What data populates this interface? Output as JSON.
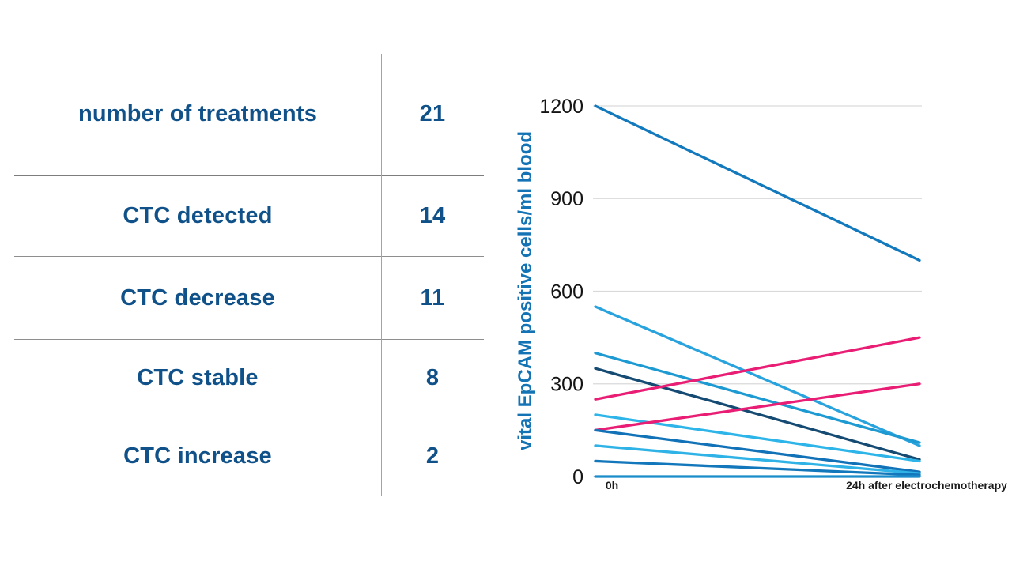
{
  "colors": {
    "table_text": "#0f5188",
    "axis_title": "#1373b4",
    "gridline": "#d9d9d9",
    "magenta_increase": "#e91d74",
    "blue_decrease": "#1379bd"
  },
  "table": {
    "rows": [
      {
        "label": "number of treatments",
        "value": "21"
      },
      {
        "label": "CTC detected",
        "value": "14"
      },
      {
        "label": "CTC decrease",
        "value": "11"
      },
      {
        "label": "CTC stable",
        "value": "8"
      },
      {
        "label": "CTC increase",
        "value": "2"
      }
    ]
  },
  "chart_data": {
    "type": "line",
    "title": "",
    "ylabel": "vital EpCAM positive cells/ml blood",
    "xlabel": "",
    "x_categories": [
      "0h",
      "24h after electrochemotherapy"
    ],
    "ylim": [
      0,
      1200
    ],
    "yticks": [
      0,
      300,
      600,
      900,
      1200
    ],
    "grid": true,
    "legend_position": "none",
    "series": [
      {
        "color": "#1379bd",
        "values": [
          1200,
          700
        ]
      },
      {
        "color": "#29a3dd",
        "values": [
          550,
          100
        ]
      },
      {
        "color": "#1e9ad2",
        "values": [
          400,
          110
        ]
      },
      {
        "color": "#154a72",
        "values": [
          350,
          55
        ]
      },
      {
        "color": "#e91d74",
        "values": [
          250,
          450
        ]
      },
      {
        "color": "#2db4e8",
        "values": [
          200,
          50
        ]
      },
      {
        "color": "#e91d74",
        "values": [
          150,
          300
        ]
      },
      {
        "color": "#1272b8",
        "values": [
          150,
          15
        ]
      },
      {
        "color": "#2fb3e6",
        "values": [
          100,
          10
        ]
      },
      {
        "color": "#1377bb",
        "values": [
          50,
          5
        ]
      },
      {
        "color": "#1b8ccb",
        "values": [
          0,
          0
        ]
      }
    ]
  }
}
